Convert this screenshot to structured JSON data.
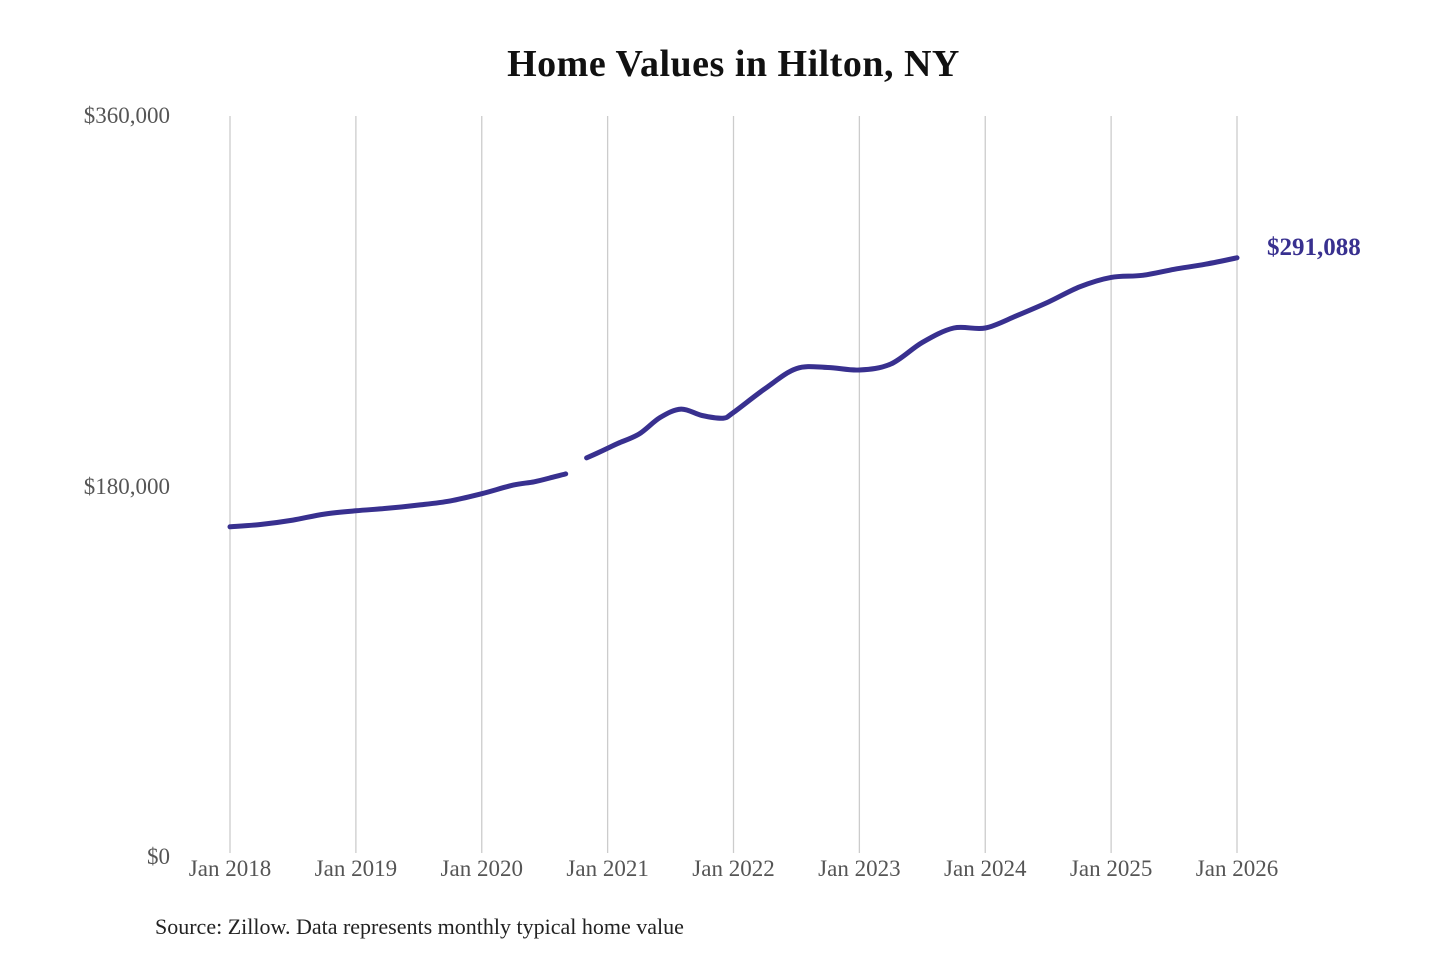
{
  "title": "Home Values in Hilton, NY",
  "source_note": "Source: Zillow. Data represents monthly typical home value",
  "end_label": "$291,088",
  "colors": {
    "line": "#38308f",
    "end_label_text": "#38308f",
    "gridline": "#cccccc",
    "tick_text": "#555555",
    "title_text": "#111111",
    "source_text": "#222222",
    "background": "#ffffff"
  },
  "y_axis": {
    "ticks": [
      {
        "label": "$360,000",
        "value": 360000
      },
      {
        "label": "$180,000",
        "value": 180000
      },
      {
        "label": "$0",
        "value": 0
      }
    ]
  },
  "x_axis": {
    "ticks": [
      "Jan 2018",
      "Jan 2019",
      "Jan 2020",
      "Jan 2021",
      "Jan 2022",
      "Jan 2023",
      "Jan 2024",
      "Jan 2025",
      "Jan 2026"
    ]
  },
  "chart_data": {
    "type": "line",
    "title": "Home Values in Hilton, NY",
    "xlabel": "",
    "ylabel": "",
    "ylim": [
      0,
      360000
    ],
    "x_range": [
      "2018-01",
      "2026-01"
    ],
    "grid": "vertical-only",
    "legend": "none",
    "annotation": {
      "text": "$291,088",
      "position": "end-of-line"
    },
    "data_gap_months": [
      "2020-10"
    ],
    "series": [
      {
        "name": "Monthly typical home value",
        "color": "#38308f",
        "points": [
          [
            "2018-01",
            160400
          ],
          [
            "2018-04",
            161600
          ],
          [
            "2018-07",
            163700
          ],
          [
            "2018-10",
            166600
          ],
          [
            "2019-01",
            168200
          ],
          [
            "2019-04",
            169400
          ],
          [
            "2019-07",
            171000
          ],
          [
            "2019-10",
            173000
          ],
          [
            "2020-01",
            176500
          ],
          [
            "2020-04",
            180700
          ],
          [
            "2020-06",
            182300
          ],
          [
            "2020-08",
            184800
          ],
          [
            "2020-09",
            186100
          ],
          [
            "2020-10",
            null
          ],
          [
            "2020-11",
            193900
          ],
          [
            "2020-12",
            196200
          ],
          [
            "2021-01",
            198600
          ],
          [
            "2021-02",
            201000
          ],
          [
            "2021-04",
            205500
          ],
          [
            "2021-06",
            213500
          ],
          [
            "2021-08",
            217600
          ],
          [
            "2021-10",
            214500
          ],
          [
            "2021-12",
            213200
          ],
          [
            "2022-01",
            216000
          ],
          [
            "2022-04",
            227500
          ],
          [
            "2022-07",
            237300
          ],
          [
            "2022-10",
            237800
          ],
          [
            "2023-01",
            236600
          ],
          [
            "2023-04",
            239500
          ],
          [
            "2023-07",
            250000
          ],
          [
            "2023-10",
            257000
          ],
          [
            "2024-01",
            257000
          ],
          [
            "2024-04",
            263000
          ],
          [
            "2024-07",
            269600
          ],
          [
            "2024-10",
            277000
          ],
          [
            "2025-01",
            281600
          ],
          [
            "2025-04",
            282600
          ],
          [
            "2025-07",
            285500
          ],
          [
            "2025-10",
            288000
          ],
          [
            "2026-01",
            291088
          ]
        ]
      }
    ]
  }
}
